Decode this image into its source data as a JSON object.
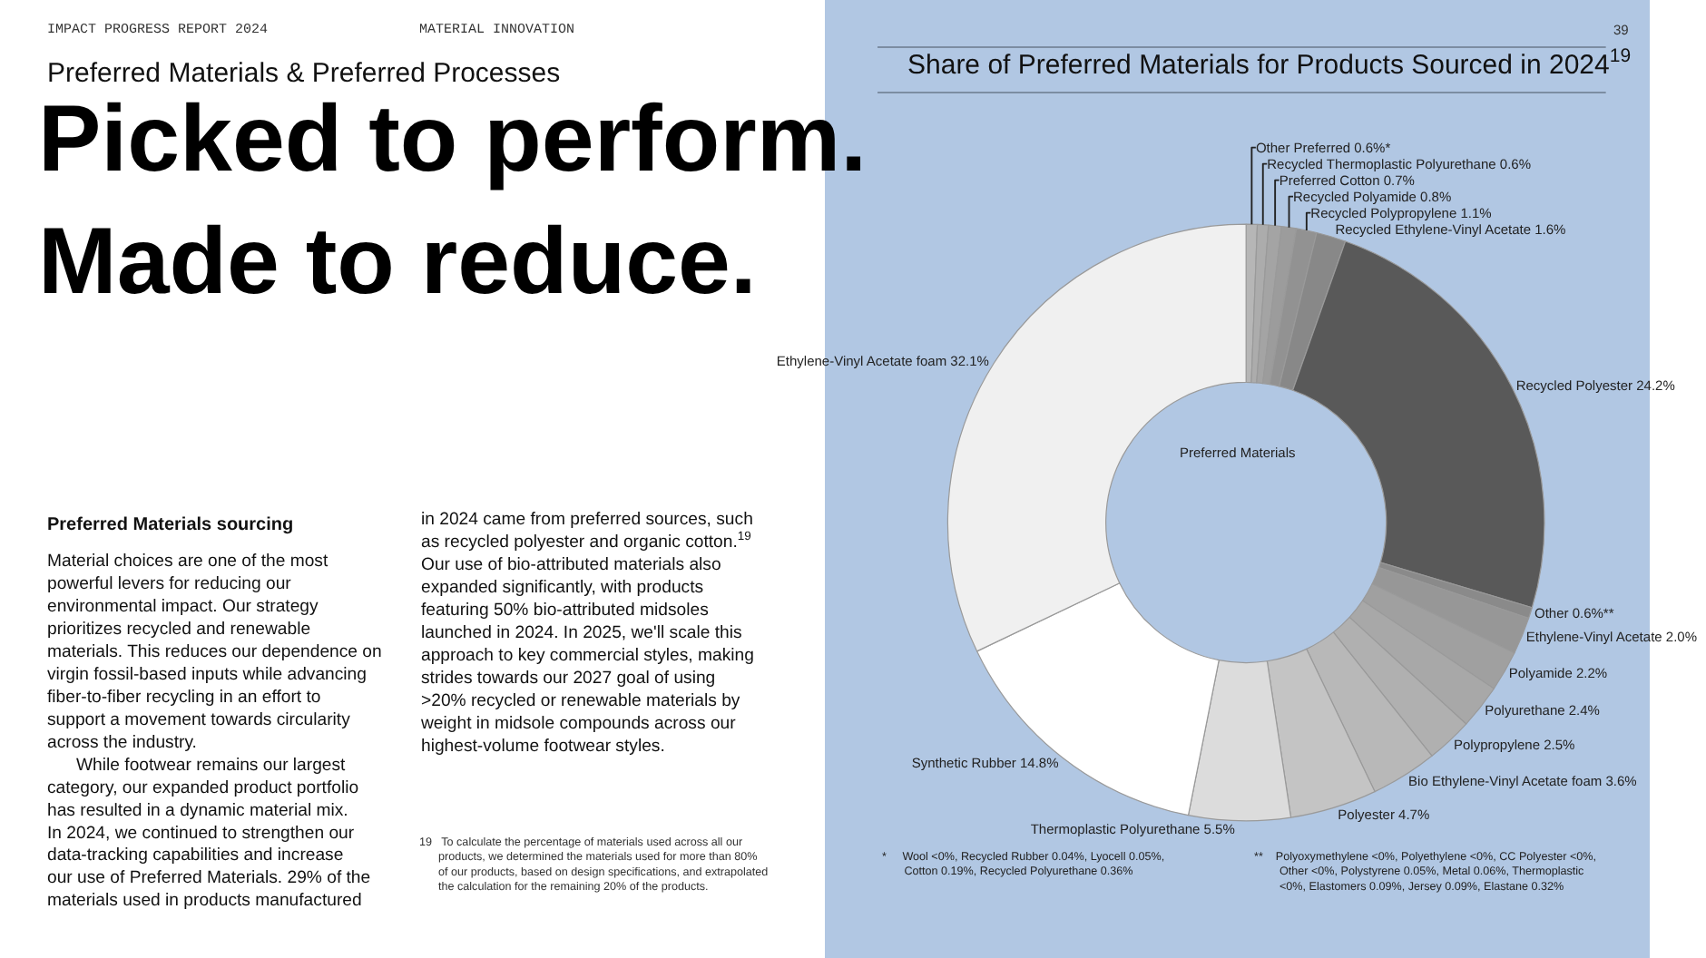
{
  "chart_data": {
    "type": "donut",
    "title": "Share of Preferred Materials for Products Sourced in 2024$^{19}$",
    "categories": [
      "Other Preferred",
      "Recycled Thermoplastic Polyurethane",
      "Preferred Cotton",
      "Recycled Polyamide",
      "Recycled Polypropylene",
      "Recycled Ethylene-Vinyl Acetate",
      "Recycled Polyester",
      "Other",
      "Ethylene-Vinyl Acetate",
      "Polyamide",
      "Polyurethane",
      "Polypropylene",
      "Bio Ethylene-Vinyl Acetate foam",
      "Polyester",
      "Thermoplastic Polyurethane",
      "Synthetic Rubber",
      "Ethylene-Vinyl Acetate foam"
    ],
    "values": [
      0.6,
      0.6,
      0.7,
      0.8,
      1.1,
      1.6,
      24.2,
      0.6,
      2.0,
      2.2,
      2.4,
      2.5,
      3.6,
      4.7,
      5.5,
      14.8,
      32.1
    ],
    "colors": [
      "#b6b6b6",
      "#acacac",
      "#a4a4a4",
      "#9c9c9c",
      "#929292",
      "#888888",
      "#595959",
      "#8a8a8a",
      "#979797",
      "#a0a0a0",
      "#a8a8a8",
      "#b0b0b0",
      "#b8b8b8",
      "#c4c4c4",
      "#dcdcdc",
      "#ffffff",
      "#f0f0f0"
    ],
    "value_labels": [
      "0.6%*",
      "0.6%",
      "0.7%",
      "0.8%",
      "1.1%",
      "1.6%",
      "24.2%",
      "0.6%**",
      "2.0%",
      "2.2%",
      "2.4%",
      "2.5%",
      "3.6%",
      "4.7%",
      "5.5%",
      "14.8%",
      "32.1%"
    ],
    "legend": false,
    "annotations": [
      "IMPACT PROGRESS REPORT 2024",
      "MATERIAL INNOVATION",
      "Preferred Materials & Preferred Processes",
      "Picked to perform.\nMade to reduce.",
      "Preferred Materials sourcing",
      "Material choices are one of the most\npowerful levers for reducing our\nenvironmental impact. Our strategy\nprioritizes recycled and renewable\nmaterials. This reduces our dependence on\nvirgin fossil-based inputs while advancing\nfiber-to-fiber recycling in an effort to\nsupport a movement towards circularity\nacross the industry.\n      While footwear remains our largest\ncategory, our expanded product portfolio\nhas resulted in a dynamic material mix.\nIn 2024, we continued to strengthen our\ndata-tracking capabilities and increase\nour use of Preferred Materials. 29% of the\nmaterials used in products manufactured",
      "in 2024 came from preferred sources, such\nas recycled polyester and organic cotton.$^{19}$\nOur use of bio-attributed materials also\nexpanded significantly, with products\nfeaturing 50% bio-attributed midsoles\nlaunched in 2024. In 2025, we'll scale this\napproach to key commercial styles, making\nstrides towards our 2027 goal of using\n>20% recycled or renewable materials by\nweight in midsole compounds across our\nhighest-volume footwear styles.",
      "19   To calculate the percentage of materials used across all our\n      products, we determined the materials used for more than 80%\n      of our products, based on design specifications, and extrapolated\n      the calculation for the remaining 20% of the products.",
      "39",
      "*     Wool <0%, Recycled Rubber 0.04%, Lyocell 0.05%,\n       Cotton 0.19%, Recycled Polyurethane 0.36%",
      "**    Polyoxymethylene <0%, Polyethylene <0%, CC Polyester <0%,\n        Other <0%, Polystyrene 0.05%, Metal 0.06%, Thermoplastic\n        <0%, Elastomers 0.09%, Jersey 0.09%, Elastane 0.32%",
      "Preferred Materials"
    ]
  }
}
